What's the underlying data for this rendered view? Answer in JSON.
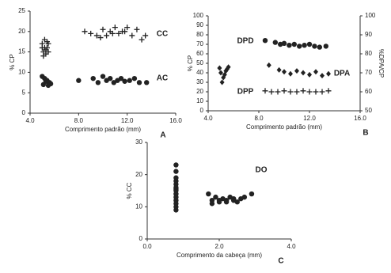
{
  "chart_data": [
    {
      "type": "scatter",
      "panel": "A",
      "xlabel": "Comprimento padrão (mm)",
      "ylabel": "% CP",
      "xlim": [
        4,
        16
      ],
      "xticks": [
        {
          "value": 4,
          "label": "4.0"
        },
        {
          "value": 8,
          "label": "8.0"
        },
        {
          "value": 12,
          "label": "12.0"
        },
        {
          "value": 16,
          "label": "16.0"
        }
      ],
      "ylim": [
        0,
        25
      ],
      "yticks": [
        0,
        5,
        10,
        15,
        20,
        25
      ],
      "series": [
        {
          "name": "CC",
          "marker": "plus",
          "color": "#222",
          "x": [
            5.0,
            5.1,
            5.2,
            5.3,
            5.4,
            5.5,
            5.0,
            5.2,
            5.4,
            5.1,
            5.3,
            5.5,
            8.5,
            9.0,
            9.5,
            10.0,
            10.3,
            10.6,
            11.0,
            11.3,
            11.6,
            12.0,
            12.4,
            12.8,
            13.2,
            13.5,
            9.8,
            10.8,
            11.8
          ],
          "values": [
            17,
            15,
            16,
            14.5,
            17.5,
            15,
            16,
            18,
            16,
            14,
            15.5,
            17,
            20,
            19.5,
            19,
            20.5,
            19,
            20,
            21,
            19.5,
            20,
            21,
            19,
            20.5,
            18,
            19,
            18.5,
            19.5,
            20
          ]
        },
        {
          "name": "AC",
          "marker": "circle",
          "color": "#222",
          "x": [
            5.0,
            5.2,
            5.4,
            5.6,
            5.1,
            5.3,
            5.5,
            5.7,
            8.0,
            9.2,
            9.6,
            10.0,
            10.3,
            10.6,
            10.9,
            11.2,
            11.5,
            11.8,
            12.2,
            12.6,
            13.0,
            13.6
          ],
          "values": [
            9,
            8.5,
            8,
            7.5,
            7,
            7.8,
            6.8,
            7.2,
            8,
            8.5,
            7.5,
            9,
            8,
            8.5,
            7.5,
            8,
            8.5,
            7.8,
            8,
            8.5,
            7.5,
            7.5
          ]
        }
      ]
    },
    {
      "type": "scatter",
      "panel": "B",
      "xlabel": "Comprimento padrão (mm)",
      "ylabel": "% CP",
      "y2label": "%DPA/CP",
      "xlim": [
        4,
        16
      ],
      "xticks": [
        {
          "value": 4,
          "label": "4.0"
        },
        {
          "value": 8,
          "label": "8.0"
        },
        {
          "value": 12,
          "label": "12.0"
        },
        {
          "value": 16,
          "label": "16.0"
        }
      ],
      "ylim": [
        0,
        100
      ],
      "yticks": [
        0,
        10,
        20,
        30,
        40,
        50,
        60,
        70,
        80,
        90,
        100
      ],
      "y2lim": [
        50,
        100
      ],
      "y2ticks": [
        50,
        60,
        70,
        80,
        90,
        100
      ],
      "series": [
        {
          "name": "DPD",
          "marker": "circle",
          "color": "#222",
          "x": [
            8.5,
            9.3,
            9.7,
            10.0,
            10.4,
            10.8,
            11.2,
            11.6,
            12.0,
            12.4,
            12.8,
            13.3
          ],
          "values": [
            74,
            72,
            70,
            71,
            69,
            70,
            68,
            69,
            70,
            68,
            67,
            68
          ]
        },
        {
          "name": "DPA",
          "marker": "diamond",
          "color": "#222",
          "axis": "y2",
          "x": [
            4.9,
            5.0,
            5.2,
            5.4,
            5.6,
            5.1,
            5.3,
            5.5,
            8.8,
            9.6,
            10.0,
            10.5,
            11.0,
            11.5,
            12.0,
            12.5,
            13.0,
            13.5
          ],
          "values": [
            72.5,
            70,
            67.5,
            71,
            73,
            65,
            69,
            72,
            74,
            71.5,
            70.5,
            69.5,
            71,
            70,
            69,
            70.5,
            68.5,
            69.5
          ]
        },
        {
          "name": "DPP",
          "marker": "plus",
          "color": "#222",
          "x": [
            8.5,
            9.0,
            9.5,
            10.0,
            10.5,
            11.0,
            11.5,
            12.0,
            12.5,
            13.0,
            13.5
          ],
          "values": [
            21,
            20,
            20,
            21,
            20,
            20,
            21,
            20,
            20,
            20,
            21
          ]
        }
      ]
    },
    {
      "type": "scatter",
      "panel": "C",
      "xlabel": "Comprimento da cabeça (mm)",
      "ylabel": "% CC",
      "xlim": [
        0,
        4
      ],
      "xticks": [
        {
          "value": 0,
          "label": "0.0"
        },
        {
          "value": 2,
          "label": "2.0"
        },
        {
          "value": 4,
          "label": "4.0"
        }
      ],
      "ylim": [
        0,
        30
      ],
      "yticks": [
        0,
        10,
        20,
        30
      ],
      "series": [
        {
          "name": "DO",
          "marker": "circle",
          "color": "#222",
          "x": [
            0.8,
            0.8,
            0.8,
            0.8,
            0.8,
            0.8,
            0.8,
            0.8,
            0.8,
            0.8,
            0.8,
            0.8,
            0.8,
            0.8,
            1.7,
            1.8,
            1.9,
            2.0,
            2.1,
            2.2,
            2.3,
            2.4,
            2.5,
            2.6,
            2.7,
            2.9,
            1.8,
            2.0,
            2.2,
            2.4
          ],
          "values": [
            23,
            21,
            19,
            18,
            17,
            16,
            15.5,
            15,
            14,
            13,
            12,
            11,
            10,
            9,
            14,
            12,
            13,
            11.5,
            12.5,
            12,
            13,
            12,
            11.5,
            12.5,
            13,
            14,
            11,
            12,
            11.5,
            12.5
          ]
        }
      ]
    }
  ]
}
